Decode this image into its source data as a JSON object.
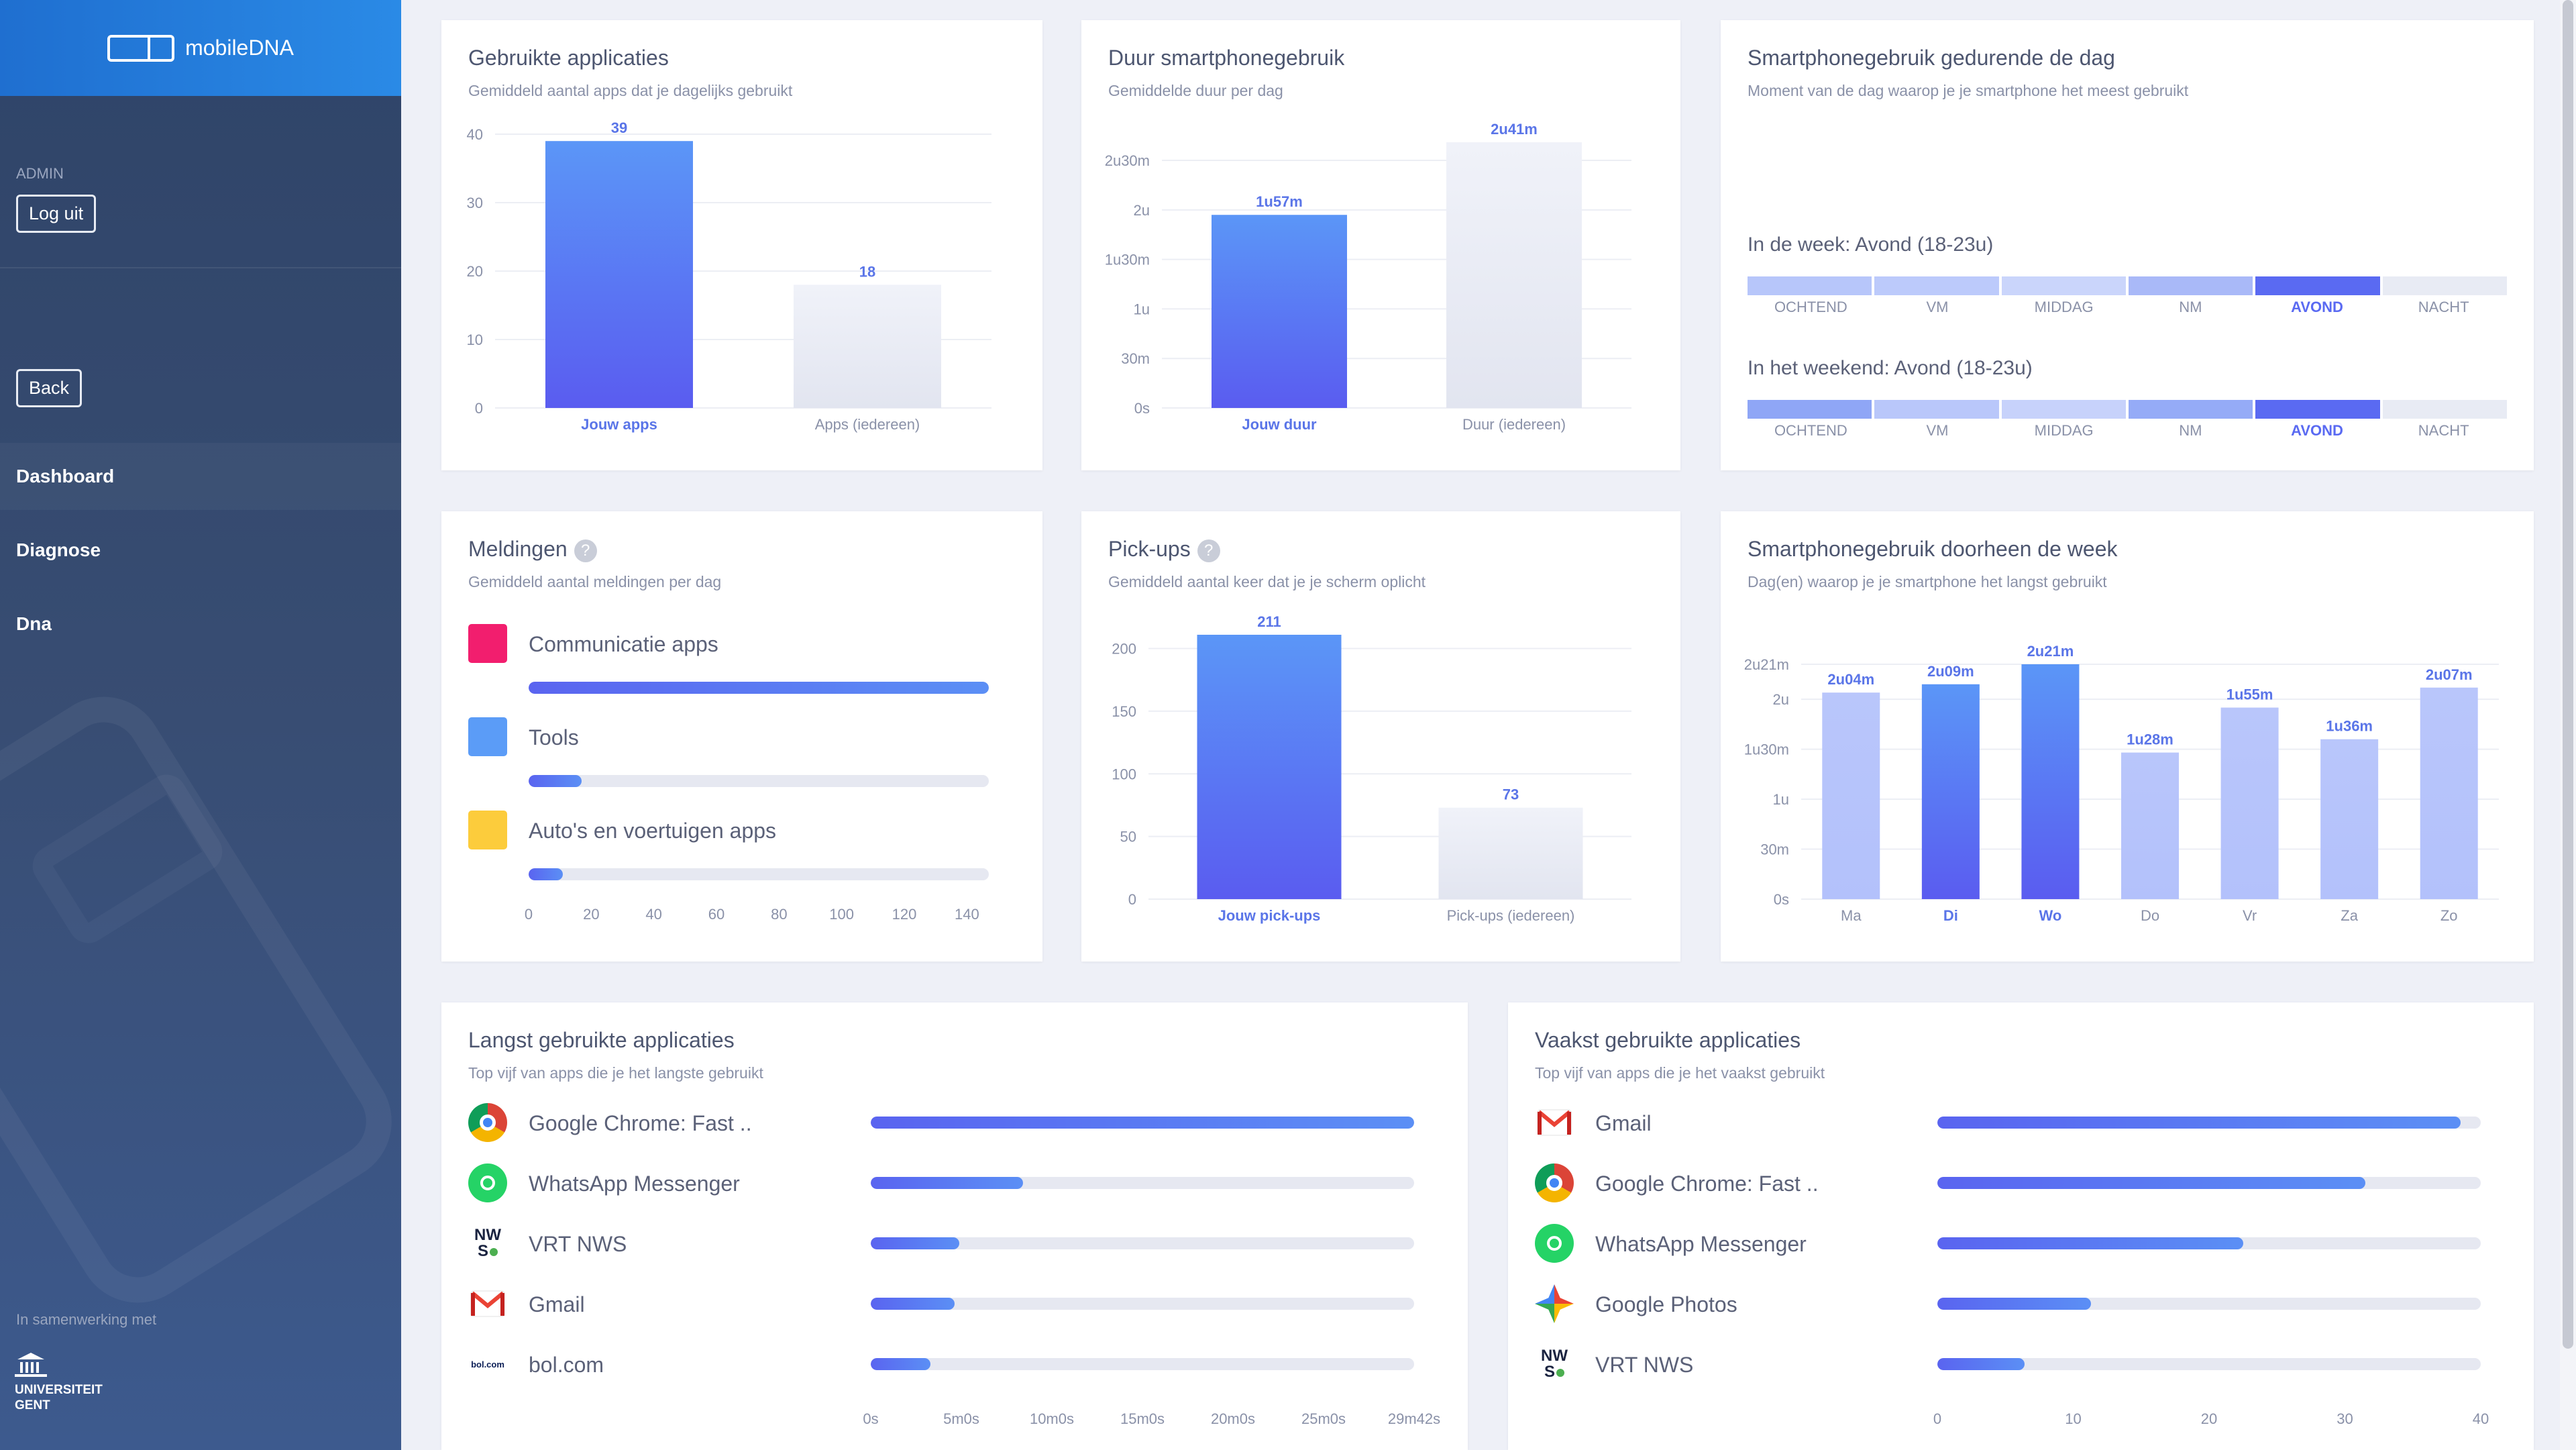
{
  "sidebar": {
    "logo_text": "mobileDNA",
    "role": "ADMIN",
    "logout": "Log uit",
    "back": "Back",
    "nav": [
      {
        "label": "Dashboard"
      },
      {
        "label": "Diagnose"
      },
      {
        "label": "Dna"
      }
    ],
    "collab": "In samenwerking met",
    "ugent_line1": "UNIVERSITEIT",
    "ugent_line2": "GENT"
  },
  "cards": {
    "apps": {
      "title": "Gebruikte applicaties",
      "subtitle": "Gemiddeld aantal apps dat je dagelijks gebruikt"
    },
    "duration": {
      "title": "Duur smartphonegebruik",
      "subtitle": "Gemiddelde duur per dag"
    },
    "timeofday": {
      "title": "Smartphonegebruik gedurende de dag",
      "subtitle": "Moment van de dag waarop je je smartphone het meest gebruikt",
      "week_title": "In de week: Avond (18-23u)",
      "weekend_title": "In het weekend: Avond (18-23u)",
      "segments": [
        "OCHTEND",
        "VM",
        "MIDDAG",
        "NM",
        "AVOND",
        "NACHT"
      ],
      "week_colors": [
        "#b7c6fa",
        "#bccafb",
        "#cad5fb",
        "#a9b9f8",
        "#5a6af2",
        "#e8ebf4"
      ],
      "weekend_colors": [
        "#8fa6f6",
        "#b9c7fa",
        "#c7d2fb",
        "#95abf7",
        "#5a6af2",
        "#e8ebf4"
      ]
    },
    "notifications": {
      "title": "Meldingen",
      "help": "?",
      "subtitle": "Gemiddeld aantal meldingen per dag",
      "items": [
        {
          "label": "Communicatie apps",
          "color": "#f21e6e",
          "value": 147
        },
        {
          "label": "Tools",
          "color": "#5b9cf7",
          "value": 17
        },
        {
          "label": "Auto's en voertuigen apps",
          "color": "#fccc3c",
          "value": 11
        }
      ],
      "axis_max": 147,
      "axis_ticks": [
        "0",
        "20",
        "40",
        "60",
        "80",
        "100",
        "120",
        "140"
      ]
    },
    "pickups": {
      "title": "Pick-ups",
      "help": "?",
      "subtitle": "Gemiddeld aantal keer dat je je scherm oplicht"
    },
    "week": {
      "title": "Smartphonegebruik doorheen de week",
      "subtitle": "Dag(en) waarop je je smartphone het langst gebruikt"
    },
    "longest": {
      "title": "Langst gebruikte applicaties",
      "subtitle": "Top vijf van apps die je het langste gebruikt",
      "axis_max_seconds": 1782,
      "axis_ticks": [
        "0s",
        "5m0s",
        "10m0s",
        "15m0s",
        "20m0s",
        "25m0s",
        "29m42s"
      ],
      "items": [
        {
          "name": "Google Chrome: Fast ..",
          "icon": "chrome-icon",
          "seconds": 1782
        },
        {
          "name": "WhatsApp Messenger",
          "icon": "whatsapp-icon",
          "seconds": 500
        },
        {
          "name": "VRT NWS",
          "icon": "vrt-nws-icon",
          "seconds": 290
        },
        {
          "name": "Gmail",
          "icon": "gmail-icon",
          "seconds": 275
        },
        {
          "name": "bol.com",
          "icon": "bol-icon",
          "seconds": 195
        }
      ]
    },
    "frequent": {
      "title": "Vaakst gebruikte applicaties",
      "subtitle": "Top vijf van apps die je het vaakst gebruikt",
      "axis_max": 40,
      "axis_ticks": [
        "0",
        "10",
        "20",
        "30",
        "40"
      ],
      "items": [
        {
          "name": "Gmail",
          "icon": "gmail-icon",
          "value": 38.5
        },
        {
          "name": "Google Chrome: Fast ..",
          "icon": "chrome-icon",
          "value": 31.5
        },
        {
          "name": "WhatsApp Messenger",
          "icon": "whatsapp-icon",
          "value": 22.5
        },
        {
          "name": "Google Photos",
          "icon": "google-photos-icon",
          "value": 11.3
        },
        {
          "name": "VRT NWS",
          "icon": "vrt-nws-icon",
          "value": 6.4
        }
      ]
    }
  },
  "icon_text": {
    "nws": "NW",
    "s": "S",
    "bol": "bol.com"
  },
  "chart_data": [
    {
      "type": "bar",
      "title": "Gebruikte applicaties",
      "categories": [
        "Jouw apps",
        "Apps (iedereen)"
      ],
      "values": [
        39,
        18
      ],
      "value_labels": [
        "39",
        "18"
      ],
      "ylim": [
        0,
        40
      ],
      "yticks": [
        0,
        10,
        20,
        30,
        40
      ],
      "ytick_labels": [
        "0",
        "10",
        "20",
        "30",
        "40"
      ]
    },
    {
      "type": "bar",
      "title": "Duur smartphonegebruik",
      "categories": [
        "Jouw duur",
        "Duur (iedereen)"
      ],
      "values": [
        117,
        161
      ],
      "value_labels": [
        "1u57m",
        "2u41m"
      ],
      "ylim": [
        0,
        161
      ],
      "yticks": [
        0,
        30,
        60,
        90,
        120,
        150
      ],
      "ytick_labels": [
        "0s",
        "30m",
        "1u",
        "1u30m",
        "2u",
        "2u30m"
      ]
    },
    {
      "type": "bar",
      "title": "Pick-ups",
      "categories": [
        "Jouw pick-ups",
        "Pick-ups (iedereen)"
      ],
      "values": [
        211,
        73
      ],
      "value_labels": [
        "211",
        "73"
      ],
      "ylim": [
        0,
        211
      ],
      "yticks": [
        0,
        50,
        100,
        150,
        200
      ],
      "ytick_labels": [
        "0",
        "50",
        "100",
        "150",
        "200"
      ]
    },
    {
      "type": "bar",
      "title": "Smartphonegebruik doorheen de week",
      "categories": [
        "Ma",
        "Di",
        "Wo",
        "Do",
        "Vr",
        "Za",
        "Zo"
      ],
      "values": [
        124,
        129,
        141,
        88,
        115,
        96,
        127
      ],
      "value_labels": [
        "2u04m",
        "2u09m",
        "2u21m",
        "1u28m",
        "1u55m",
        "1u36m",
        "2u07m"
      ],
      "highlight": [
        "Di",
        "Wo"
      ],
      "ylim": [
        0,
        141
      ],
      "yticks": [
        0,
        30,
        60,
        90,
        120,
        141
      ],
      "ytick_labels": [
        "0s",
        "30m",
        "1u",
        "1u30m",
        "2u",
        "2u21m"
      ]
    }
  ],
  "colors": {
    "accent": "#5a64f0",
    "accent_light": "#5b8ff5",
    "muted_bar": "#e6e9f3",
    "week_bar": "#b5c3fb",
    "label_blue": "#5a75e8"
  }
}
